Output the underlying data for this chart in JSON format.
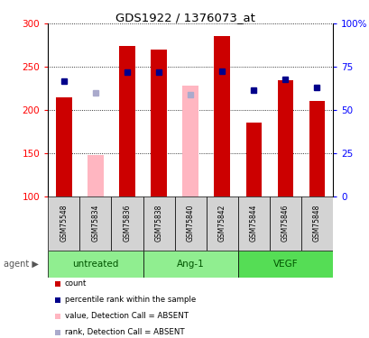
{
  "title": "GDS1922 / 1376073_at",
  "samples": [
    "GSM75548",
    "GSM75834",
    "GSM75836",
    "GSM75838",
    "GSM75840",
    "GSM75842",
    "GSM75844",
    "GSM75846",
    "GSM75848"
  ],
  "bar_values": [
    215,
    null,
    274,
    270,
    null,
    286,
    185,
    234,
    210
  ],
  "bar_absent": [
    null,
    148,
    null,
    null,
    228,
    null,
    null,
    null,
    null
  ],
  "rank_values": [
    233,
    null,
    244,
    244,
    null,
    245,
    223,
    235,
    226
  ],
  "rank_absent": [
    null,
    220,
    null,
    null,
    218,
    null,
    null,
    null,
    null
  ],
  "bar_color": "#CC0000",
  "bar_absent_color": "#FFB6C1",
  "rank_color": "#00008B",
  "rank_absent_color": "#AAAACC",
  "ymin": 100,
  "ymax": 300,
  "yticks": [
    100,
    150,
    200,
    250,
    300
  ],
  "right_yticks_pct": [
    0,
    25,
    50,
    75,
    100
  ],
  "right_ylabels": [
    "0",
    "25",
    "50",
    "75",
    "100%"
  ],
  "group_defs": [
    {
      "start": 0,
      "end": 2,
      "label": "untreated",
      "color": "#90EE90"
    },
    {
      "start": 3,
      "end": 5,
      "label": "Ang-1",
      "color": "#90EE90"
    },
    {
      "start": 6,
      "end": 8,
      "label": "VEGF",
      "color": "#55DD55"
    }
  ],
  "legend": [
    {
      "label": "count",
      "color": "#CC0000"
    },
    {
      "label": "percentile rank within the sample",
      "color": "#00008B"
    },
    {
      "label": "value, Detection Call = ABSENT",
      "color": "#FFB6C1"
    },
    {
      "label": "rank, Detection Call = ABSENT",
      "color": "#AAAACC"
    }
  ],
  "bar_width": 0.5,
  "rank_markersize": 5
}
